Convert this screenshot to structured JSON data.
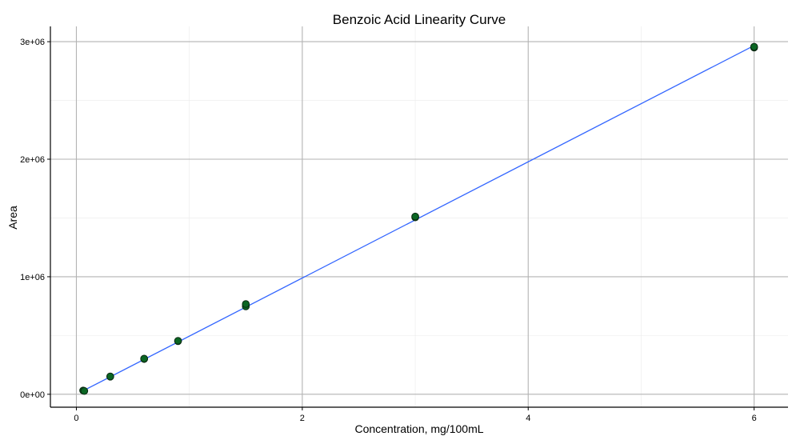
{
  "chart_data": {
    "type": "scatter",
    "title": "Benzoic Acid Linearity Curve",
    "xlabel": "Concentration, mg/100mL",
    "ylabel": "Area",
    "xlim": [
      -0.23,
      6.3
    ],
    "ylim": [
      -110000,
      3130000
    ],
    "x_ticks": [
      {
        "value": 0,
        "label": "0"
      },
      {
        "value": 2,
        "label": "2"
      },
      {
        "value": 4,
        "label": "4"
      },
      {
        "value": 6,
        "label": "6"
      }
    ],
    "y_ticks": [
      {
        "value": 0,
        "label": "0e+00"
      },
      {
        "value": 1000000,
        "label": "1e+06"
      },
      {
        "value": 2000000,
        "label": "2e+06"
      },
      {
        "value": 3000000,
        "label": "3e+06"
      }
    ],
    "x_minor": [
      1,
      3,
      5
    ],
    "y_minor": [
      500000,
      1500000,
      2500000
    ],
    "grid": true,
    "legend": "none",
    "points": [
      {
        "x": 0.06,
        "y": 32000
      },
      {
        "x": 0.07,
        "y": 28000
      },
      {
        "x": 0.3,
        "y": 150000
      },
      {
        "x": 0.3,
        "y": 152000
      },
      {
        "x": 0.6,
        "y": 300000
      },
      {
        "x": 0.6,
        "y": 303000
      },
      {
        "x": 0.9,
        "y": 452000
      },
      {
        "x": 0.9,
        "y": 455000
      },
      {
        "x": 1.5,
        "y": 748000
      },
      {
        "x": 1.5,
        "y": 768000
      },
      {
        "x": 3.0,
        "y": 1505000
      },
      {
        "x": 3.0,
        "y": 1512000
      },
      {
        "x": 6.0,
        "y": 2950000
      },
      {
        "x": 6.0,
        "y": 2957000
      }
    ],
    "fit_line": {
      "slope": 494500,
      "intercept": 0,
      "x_range": [
        0.06,
        6.0
      ]
    },
    "colors": {
      "point_fill": "#0b6623",
      "point_stroke": "#0a2a12",
      "fit_line": "#3366ff"
    }
  }
}
